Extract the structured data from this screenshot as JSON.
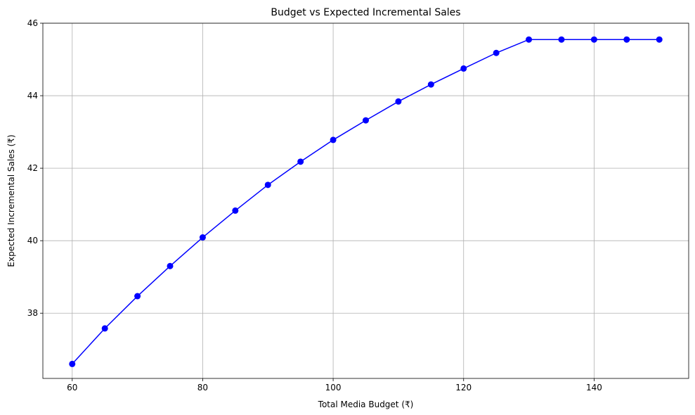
{
  "chart_data": {
    "type": "line",
    "title": "Budget vs Expected Incremental Sales",
    "xlabel": "Total Media Budget (₹)",
    "ylabel": "Expected Incremental Sales (₹)",
    "xlim": [
      55.5,
      154.5
    ],
    "ylim": [
      36.2,
      46
    ],
    "xticks": [
      60,
      80,
      100,
      120,
      140
    ],
    "yticks": [
      38,
      40,
      42,
      44,
      46
    ],
    "grid": true,
    "series": [
      {
        "color": "#0000ff",
        "marker": "circle",
        "x": [
          60,
          65,
          70,
          75,
          80,
          85,
          90,
          95,
          100,
          105,
          110,
          115,
          120,
          125,
          130,
          135,
          140,
          145,
          150
        ],
        "y": [
          36.6,
          37.58,
          38.47,
          39.3,
          40.09,
          40.83,
          41.54,
          42.18,
          42.78,
          43.32,
          43.84,
          44.31,
          44.75,
          45.18,
          45.55,
          45.55,
          45.55,
          45.55,
          45.55
        ]
      }
    ]
  }
}
